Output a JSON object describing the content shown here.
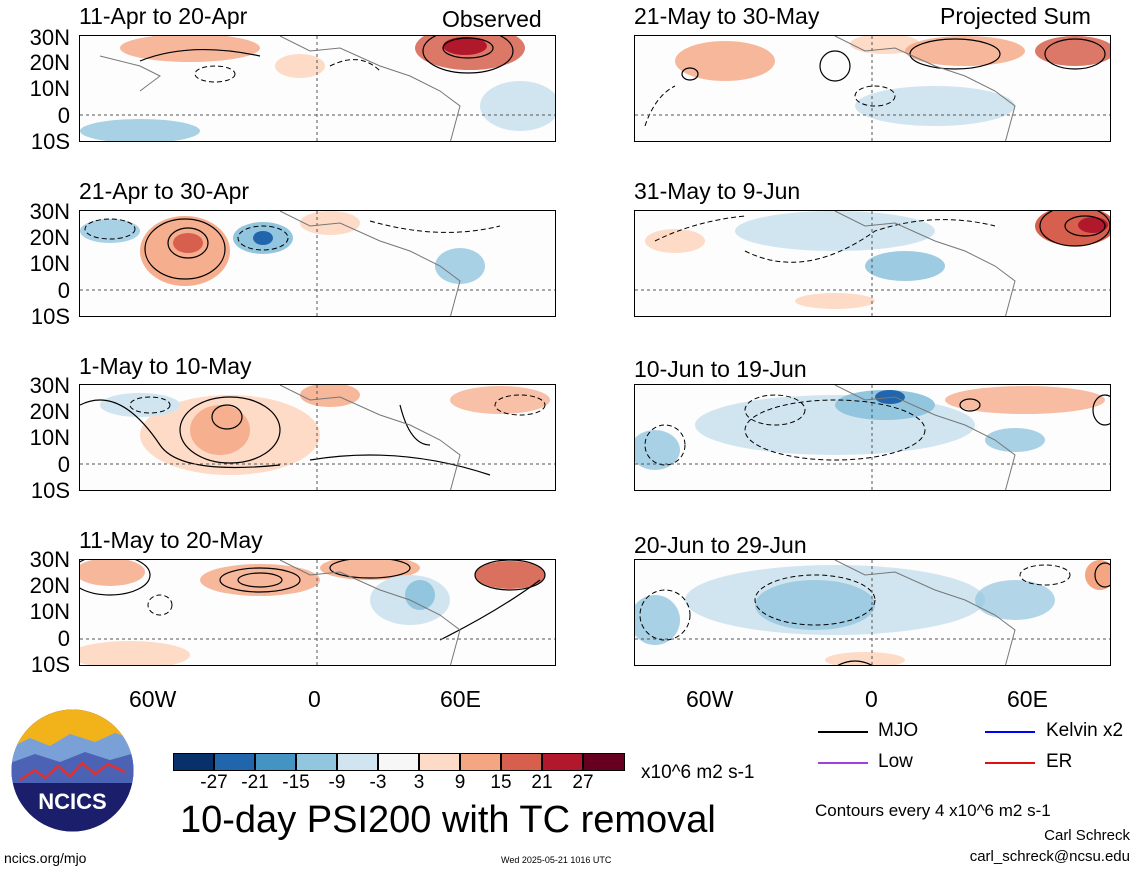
{
  "header": {
    "left": "Observed",
    "right": "Projected Sum"
  },
  "latitude_labels": [
    "30N",
    "20N",
    "10N",
    "0",
    "10S"
  ],
  "longitude_labels": [
    "60W",
    "0",
    "60E"
  ],
  "panels": [
    {
      "title": "11-Apr to 20-Apr",
      "column": "observed"
    },
    {
      "title": "21-Apr to 30-Apr",
      "column": "observed"
    },
    {
      "title": "1-May to 10-May",
      "column": "observed"
    },
    {
      "title": "11-May to 20-May",
      "column": "observed"
    },
    {
      "title": "21-May to 30-May",
      "column": "projected"
    },
    {
      "title": "31-May to 9-Jun",
      "column": "projected"
    },
    {
      "title": "10-Jun to 19-Jun",
      "column": "projected"
    },
    {
      "title": "20-Jun to 29-Jun",
      "column": "projected"
    }
  ],
  "colorbar": {
    "ticks": [
      "-27",
      "-21",
      "-15",
      "-9",
      "-3",
      "3",
      "9",
      "15",
      "21",
      "27"
    ],
    "colors": [
      "#08306b",
      "#2166ac",
      "#4393c3",
      "#92c5de",
      "#d1e5f0",
      "#f7f7f7",
      "#fddbc7",
      "#f4a582",
      "#d6604d",
      "#b2182b",
      "#67001f"
    ],
    "units": "x10^6 m2 s-1"
  },
  "legend": [
    {
      "label": "MJO",
      "color": "#000000"
    },
    {
      "label": "Kelvin x2",
      "color": "#0000ff"
    },
    {
      "label": "Low",
      "color": "#a040e0"
    },
    {
      "label": "ER",
      "color": "#e01010"
    }
  ],
  "footer": {
    "title": "10-day PSI200 with TC removal",
    "contours": "Contours every 4 x10^6 m2 s-1",
    "author": "Carl Schreck",
    "email": "carl_schreck@ncsu.edu",
    "site": "ncics.org/mjo",
    "timestamp": "Wed 2025-05-21 1016 UTC",
    "logo_text": "NCICS"
  }
}
